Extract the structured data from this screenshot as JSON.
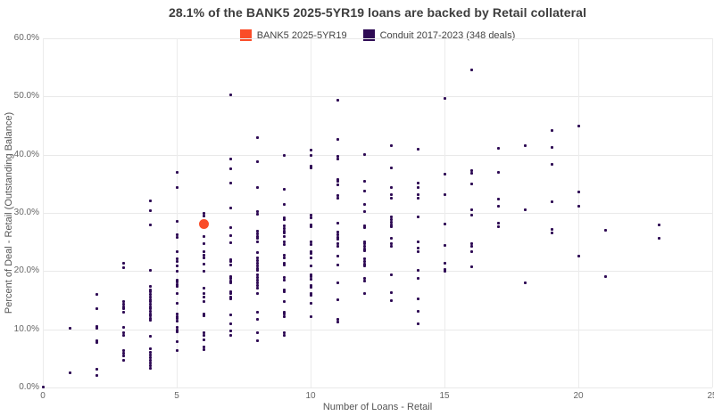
{
  "title": "28.1% of the BANK5 2025-5YR19 loans are backed by Retail collateral",
  "legend": {
    "items": [
      {
        "label": "BANK5 2025-5YR19",
        "color": "#fa4c28"
      },
      {
        "label": "Conduit 2017-2023 (348 deals)",
        "color": "#2e0a54"
      }
    ]
  },
  "chart_data": {
    "type": "scatter",
    "title": "28.1% of the BANK5 2025-5YR19 loans are backed by Retail collateral",
    "xlabel": "Number of Loans - Retail",
    "ylabel": "Percent of Deal - Retail (Outstanding Balance)",
    "xlim": [
      0,
      25
    ],
    "ylim": [
      0,
      60
    ],
    "grid": true,
    "legend_position": "top-center",
    "x_ticks": [
      0,
      5,
      10,
      15,
      20,
      25
    ],
    "x_tick_labels": [
      "0",
      "5",
      "10",
      "15",
      "20",
      "25"
    ],
    "y_ticks": [
      0,
      10,
      20,
      30,
      40,
      50,
      60
    ],
    "y_tick_labels": [
      "0.0%",
      "10.0%",
      "20.0%",
      "30.0%",
      "40.0%",
      "50.0%",
      "60.0%"
    ],
    "series": [
      {
        "name": "BANK5 2025-5YR19",
        "color": "#fa4c28",
        "marker": "circle",
        "marker_size": 11,
        "points": [
          [
            6,
            28.1
          ]
        ]
      },
      {
        "name": "Conduit 2017-2023 (348 deals)",
        "color": "#2e0a54",
        "marker": "square",
        "marker_size": 3,
        "points": [
          [
            0,
            0.1
          ],
          [
            1,
            10.2
          ],
          [
            1,
            2.6
          ],
          [
            2,
            16.0
          ],
          [
            2,
            13.5
          ],
          [
            2,
            10.5
          ],
          [
            2,
            10.2
          ],
          [
            2,
            8.0
          ],
          [
            2,
            7.7
          ],
          [
            2,
            3.2
          ],
          [
            2,
            2.0
          ],
          [
            3,
            21.3
          ],
          [
            3,
            20.6
          ],
          [
            3,
            14.8
          ],
          [
            3,
            14.3
          ],
          [
            3,
            13.9
          ],
          [
            3,
            13.5
          ],
          [
            3,
            13.0
          ],
          [
            3,
            10.4
          ],
          [
            3,
            9.4
          ],
          [
            3,
            9.0
          ],
          [
            3,
            6.3
          ],
          [
            3,
            5.9
          ],
          [
            3,
            5.5
          ],
          [
            3,
            4.6
          ],
          [
            4,
            32.0
          ],
          [
            4,
            30.4
          ],
          [
            4,
            28.0
          ],
          [
            4,
            20.1
          ],
          [
            4,
            17.3
          ],
          [
            4,
            16.8
          ],
          [
            4,
            16.4
          ],
          [
            4,
            16.0
          ],
          [
            4,
            15.5
          ],
          [
            4,
            15.1
          ],
          [
            4,
            14.7
          ],
          [
            4,
            14.3
          ],
          [
            4,
            13.9
          ],
          [
            4,
            13.5
          ],
          [
            4,
            13.1
          ],
          [
            4,
            12.7
          ],
          [
            4,
            12.3
          ],
          [
            4,
            11.9
          ],
          [
            4,
            11.5
          ],
          [
            4,
            8.8
          ],
          [
            4,
            6.6
          ],
          [
            4,
            6.1
          ],
          [
            4,
            5.6
          ],
          [
            4,
            5.1
          ],
          [
            4,
            4.7
          ],
          [
            4,
            4.2
          ],
          [
            4,
            3.7
          ],
          [
            4,
            3.3
          ],
          [
            5,
            37.0
          ],
          [
            5,
            34.3
          ],
          [
            5,
            28.5
          ],
          [
            5,
            26.2
          ],
          [
            5,
            25.8
          ],
          [
            5,
            23.4
          ],
          [
            5,
            22.1
          ],
          [
            5,
            21.7
          ],
          [
            5,
            20.9
          ],
          [
            5,
            20.0
          ],
          [
            5,
            18.5
          ],
          [
            5,
            18.1
          ],
          [
            5,
            17.7
          ],
          [
            5,
            17.3
          ],
          [
            5,
            16.2
          ],
          [
            5,
            14.5
          ],
          [
            5,
            12.6
          ],
          [
            5,
            12.2
          ],
          [
            5,
            11.8
          ],
          [
            5,
            11.4
          ],
          [
            5,
            10.4
          ],
          [
            5,
            9.9
          ],
          [
            5,
            9.5
          ],
          [
            5,
            7.9
          ],
          [
            5,
            6.4
          ],
          [
            6,
            29.9
          ],
          [
            6,
            29.5
          ],
          [
            6,
            26.0
          ],
          [
            6,
            24.7
          ],
          [
            6,
            23.4
          ],
          [
            6,
            22.7
          ],
          [
            6,
            22.3
          ],
          [
            6,
            21.2
          ],
          [
            6,
            19.9
          ],
          [
            6,
            17.1
          ],
          [
            6,
            16.1
          ],
          [
            6,
            15.6
          ],
          [
            6,
            14.8
          ],
          [
            6,
            12.7
          ],
          [
            6,
            12.3
          ],
          [
            6,
            9.4
          ],
          [
            6,
            9.0
          ],
          [
            6,
            8.2
          ],
          [
            6,
            6.9
          ],
          [
            6,
            6.5
          ],
          [
            7,
            50.3
          ],
          [
            7,
            39.3
          ],
          [
            7,
            37.6
          ],
          [
            7,
            35.2
          ],
          [
            7,
            30.8
          ],
          [
            7,
            27.4
          ],
          [
            7,
            26.1
          ],
          [
            7,
            24.8
          ],
          [
            7,
            21.9
          ],
          [
            7,
            21.6
          ],
          [
            7,
            21.1
          ],
          [
            7,
            19.1
          ],
          [
            7,
            18.7
          ],
          [
            7,
            18.3
          ],
          [
            7,
            18.0
          ],
          [
            7,
            16.5
          ],
          [
            7,
            16.1
          ],
          [
            7,
            15.6
          ],
          [
            7,
            15.3
          ],
          [
            7,
            12.5
          ],
          [
            7,
            11.0
          ],
          [
            7,
            9.7
          ],
          [
            7,
            9.0
          ],
          [
            8,
            43.0
          ],
          [
            8,
            38.8
          ],
          [
            8,
            34.4
          ],
          [
            8,
            30.3
          ],
          [
            8,
            29.8
          ],
          [
            8,
            26.9
          ],
          [
            8,
            26.4
          ],
          [
            8,
            26.0
          ],
          [
            8,
            25.6
          ],
          [
            8,
            25.1
          ],
          [
            8,
            23.2
          ],
          [
            8,
            22.2
          ],
          [
            8,
            21.8
          ],
          [
            8,
            21.4
          ],
          [
            8,
            20.9
          ],
          [
            8,
            20.5
          ],
          [
            8,
            20.1
          ],
          [
            8,
            19.4
          ],
          [
            8,
            18.9
          ],
          [
            8,
            18.5
          ],
          [
            8,
            18.0
          ],
          [
            8,
            17.6
          ],
          [
            8,
            17.1
          ],
          [
            8,
            16.2
          ],
          [
            8,
            13.0
          ],
          [
            8,
            11.7
          ],
          [
            8,
            9.4
          ],
          [
            8,
            8.1
          ],
          [
            9,
            39.8
          ],
          [
            9,
            34.0
          ],
          [
            9,
            31.4
          ],
          [
            9,
            29.2
          ],
          [
            9,
            28.8
          ],
          [
            9,
            27.8
          ],
          [
            9,
            27.3
          ],
          [
            9,
            26.9
          ],
          [
            9,
            26.5
          ],
          [
            9,
            26.0
          ],
          [
            9,
            25.0
          ],
          [
            9,
            24.6
          ],
          [
            9,
            22.7
          ],
          [
            9,
            22.3
          ],
          [
            9,
            21.4
          ],
          [
            9,
            21.1
          ],
          [
            9,
            18.9
          ],
          [
            9,
            18.5
          ],
          [
            9,
            16.8
          ],
          [
            9,
            16.4
          ],
          [
            9,
            14.8
          ],
          [
            9,
            13.0
          ],
          [
            9,
            12.6
          ],
          [
            9,
            12.2
          ],
          [
            9,
            9.4
          ],
          [
            9,
            9.0
          ],
          [
            10,
            40.8
          ],
          [
            10,
            39.8
          ],
          [
            10,
            38.1
          ],
          [
            10,
            37.7
          ],
          [
            10,
            29.6
          ],
          [
            10,
            29.2
          ],
          [
            10,
            28.0
          ],
          [
            10,
            27.7
          ],
          [
            10,
            25.0
          ],
          [
            10,
            24.6
          ],
          [
            10,
            23.4
          ],
          [
            10,
            23.0
          ],
          [
            10,
            22.2
          ],
          [
            10,
            20.9
          ],
          [
            10,
            19.4
          ],
          [
            10,
            19.0
          ],
          [
            10,
            18.6
          ],
          [
            10,
            17.6
          ],
          [
            10,
            17.2
          ],
          [
            10,
            16.2
          ],
          [
            10,
            15.8
          ],
          [
            10,
            14.5
          ],
          [
            10,
            12.1
          ],
          [
            11,
            49.3
          ],
          [
            11,
            42.7
          ],
          [
            11,
            39.7
          ],
          [
            11,
            39.3
          ],
          [
            11,
            35.8
          ],
          [
            11,
            35.4
          ],
          [
            11,
            34.8
          ],
          [
            11,
            33.0
          ],
          [
            11,
            32.6
          ],
          [
            11,
            28.3
          ],
          [
            11,
            26.7
          ],
          [
            11,
            26.2
          ],
          [
            11,
            25.8
          ],
          [
            11,
            25.5
          ],
          [
            11,
            24.7
          ],
          [
            11,
            24.3
          ],
          [
            11,
            22.6
          ],
          [
            11,
            21.1
          ],
          [
            11,
            18.0
          ],
          [
            11,
            15.1
          ],
          [
            11,
            11.7
          ],
          [
            11,
            11.3
          ],
          [
            12,
            40.0
          ],
          [
            12,
            35.4
          ],
          [
            12,
            33.7
          ],
          [
            12,
            31.4
          ],
          [
            12,
            30.3
          ],
          [
            12,
            27.8
          ],
          [
            12,
            27.4
          ],
          [
            12,
            25.1
          ],
          [
            12,
            24.7
          ],
          [
            12,
            24.3
          ],
          [
            12,
            23.8
          ],
          [
            12,
            23.5
          ],
          [
            12,
            22.1
          ],
          [
            12,
            21.7
          ],
          [
            12,
            21.2
          ],
          [
            12,
            20.9
          ],
          [
            12,
            18.7
          ],
          [
            12,
            18.3
          ],
          [
            12,
            16.1
          ],
          [
            13,
            41.6
          ],
          [
            13,
            37.8
          ],
          [
            13,
            34.3
          ],
          [
            13,
            33.1
          ],
          [
            13,
            32.5
          ],
          [
            13,
            29.3
          ],
          [
            13,
            28.9
          ],
          [
            13,
            28.4
          ],
          [
            13,
            28.0
          ],
          [
            13,
            27.6
          ],
          [
            13,
            25.7
          ],
          [
            13,
            24.7
          ],
          [
            13,
            24.3
          ],
          [
            13,
            19.4
          ],
          [
            13,
            16.3
          ],
          [
            13,
            14.9
          ],
          [
            14,
            41.0
          ],
          [
            14,
            35.2
          ],
          [
            14,
            34.4
          ],
          [
            14,
            33.1
          ],
          [
            14,
            32.5
          ],
          [
            14,
            29.3
          ],
          [
            14,
            25.1
          ],
          [
            14,
            24.0
          ],
          [
            14,
            23.3
          ],
          [
            14,
            20.2
          ],
          [
            14,
            18.8
          ],
          [
            14,
            15.2
          ],
          [
            14,
            13.1
          ],
          [
            14,
            11.0
          ],
          [
            15,
            49.6
          ],
          [
            15,
            36.7
          ],
          [
            15,
            33.1
          ],
          [
            15,
            28.1
          ],
          [
            15,
            24.4
          ],
          [
            15,
            21.3
          ],
          [
            15,
            20.3
          ],
          [
            15,
            19.9
          ],
          [
            16,
            54.6
          ],
          [
            16,
            37.2
          ],
          [
            16,
            36.8
          ],
          [
            16,
            34.9
          ],
          [
            16,
            30.6
          ],
          [
            16,
            29.6
          ],
          [
            16,
            24.7
          ],
          [
            16,
            24.2
          ],
          [
            16,
            23.4
          ],
          [
            16,
            20.7
          ],
          [
            17,
            41.1
          ],
          [
            17,
            37.0
          ],
          [
            17,
            32.4
          ],
          [
            17,
            31.1
          ],
          [
            17,
            28.3
          ],
          [
            17,
            27.6
          ],
          [
            18,
            41.5
          ],
          [
            18,
            30.6
          ],
          [
            18,
            18.0
          ],
          [
            19,
            44.1
          ],
          [
            19,
            41.2
          ],
          [
            19,
            38.3
          ],
          [
            19,
            31.9
          ],
          [
            19,
            27.2
          ],
          [
            19,
            26.5
          ],
          [
            20,
            44.9
          ],
          [
            20,
            33.6
          ],
          [
            20,
            31.2
          ],
          [
            20,
            22.6
          ],
          [
            21,
            27.0
          ],
          [
            21,
            19.1
          ],
          [
            23,
            28.0
          ],
          [
            23,
            25.6
          ]
        ]
      }
    ]
  }
}
